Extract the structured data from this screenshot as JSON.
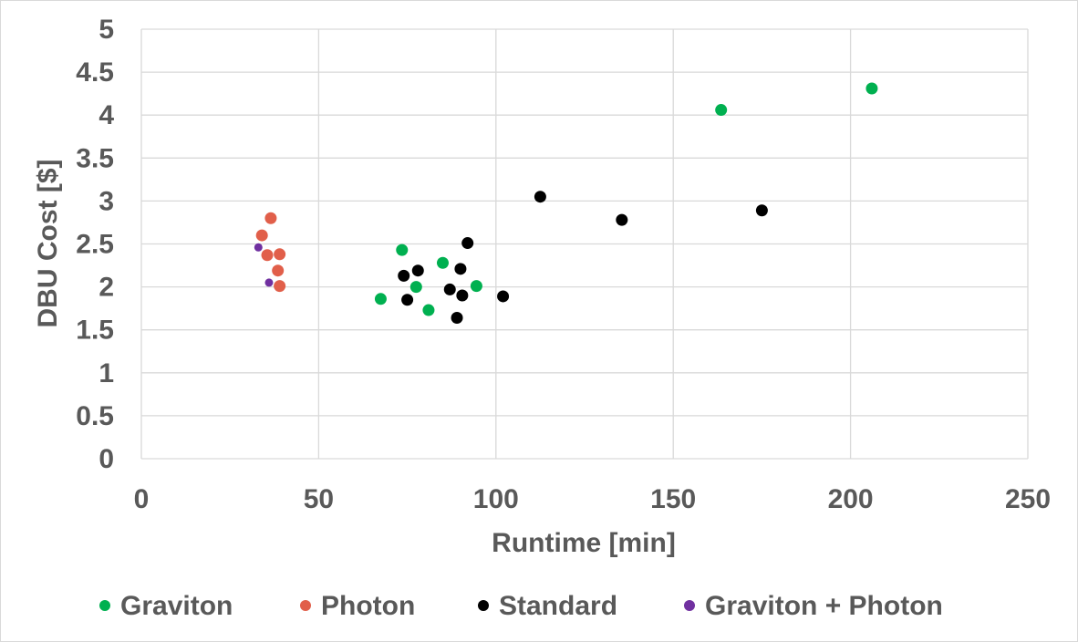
{
  "chart_data": {
    "type": "scatter",
    "title": "",
    "xlabel": "Runtime [min]",
    "ylabel": "DBU Cost [$]",
    "xlim": [
      0,
      250
    ],
    "ylim": [
      0,
      5
    ],
    "xticks": [
      0,
      50,
      100,
      150,
      200,
      250
    ],
    "yticks": [
      0,
      0.5,
      1,
      1.5,
      2,
      2.5,
      3,
      3.5,
      4,
      4.5,
      5
    ],
    "ytick_labels": [
      "0",
      "0.5",
      "1",
      "1.5",
      "2",
      "2.5",
      "3",
      "3.5",
      "4",
      "4.5",
      "5"
    ],
    "grid": true,
    "legend_position": "bottom",
    "series": [
      {
        "name": "Graviton",
        "color": "#00b050",
        "points": [
          [
            67.5,
            1.86
          ],
          [
            73.5,
            2.43
          ],
          [
            77.5,
            2.0
          ],
          [
            81,
            1.73
          ],
          [
            85,
            2.28
          ],
          [
            94.5,
            2.01
          ],
          [
            163.5,
            4.06
          ],
          [
            206,
            4.31
          ]
        ]
      },
      {
        "name": "Photon",
        "color": "#e15f4a",
        "points": [
          [
            34,
            2.6
          ],
          [
            35.5,
            2.37
          ],
          [
            36.5,
            2.8
          ],
          [
            38.5,
            2.19
          ],
          [
            39,
            2.38
          ],
          [
            39,
            2.01
          ]
        ]
      },
      {
        "name": "Standard",
        "color": "#000000",
        "points": [
          [
            74,
            2.13
          ],
          [
            75,
            1.85
          ],
          [
            78,
            2.19
          ],
          [
            87,
            1.97
          ],
          [
            89,
            1.64
          ],
          [
            90,
            2.21
          ],
          [
            90.5,
            1.9
          ],
          [
            92,
            2.51
          ],
          [
            102,
            1.89
          ],
          [
            112.5,
            3.05
          ],
          [
            135.5,
            2.78
          ],
          [
            175,
            2.89
          ]
        ]
      },
      {
        "name": "Graviton + Photon",
        "color": "#7030a0",
        "points": [
          [
            33,
            2.46
          ],
          [
            36,
            2.05
          ]
        ]
      }
    ]
  }
}
